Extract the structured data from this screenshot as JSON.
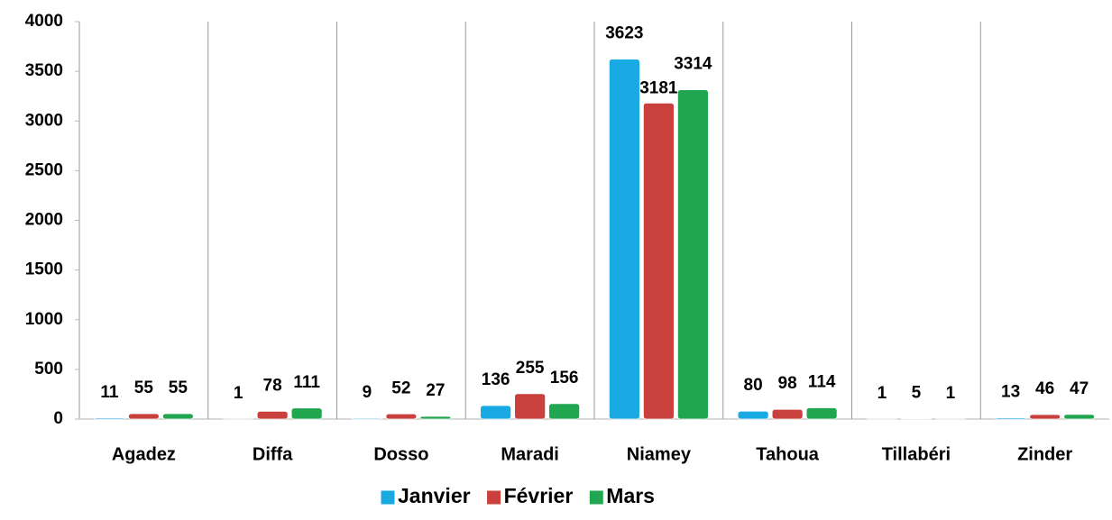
{
  "chart_data": {
    "type": "bar",
    "categories": [
      "Agadez",
      "Diffa",
      "Dosso",
      "Maradi",
      "Niamey",
      "Tahoua",
      "Tillabéri",
      "Zinder"
    ],
    "series": [
      {
        "name": "Janvier",
        "color": "#19a9e3",
        "values": [
          11,
          1,
          9,
          136,
          3623,
          80,
          1,
          13
        ]
      },
      {
        "name": "Février",
        "color": "#c9403c",
        "values": [
          55,
          78,
          52,
          255,
          3181,
          98,
          5,
          46
        ]
      },
      {
        "name": "Mars",
        "color": "#1fa64f",
        "values": [
          55,
          111,
          27,
          156,
          3314,
          114,
          1,
          47
        ]
      }
    ],
    "ylim": [
      0,
      4000
    ],
    "yticks": [
      0,
      500,
      1000,
      1500,
      2000,
      2500,
      3000,
      3500,
      4000
    ],
    "legend": "bottom"
  }
}
